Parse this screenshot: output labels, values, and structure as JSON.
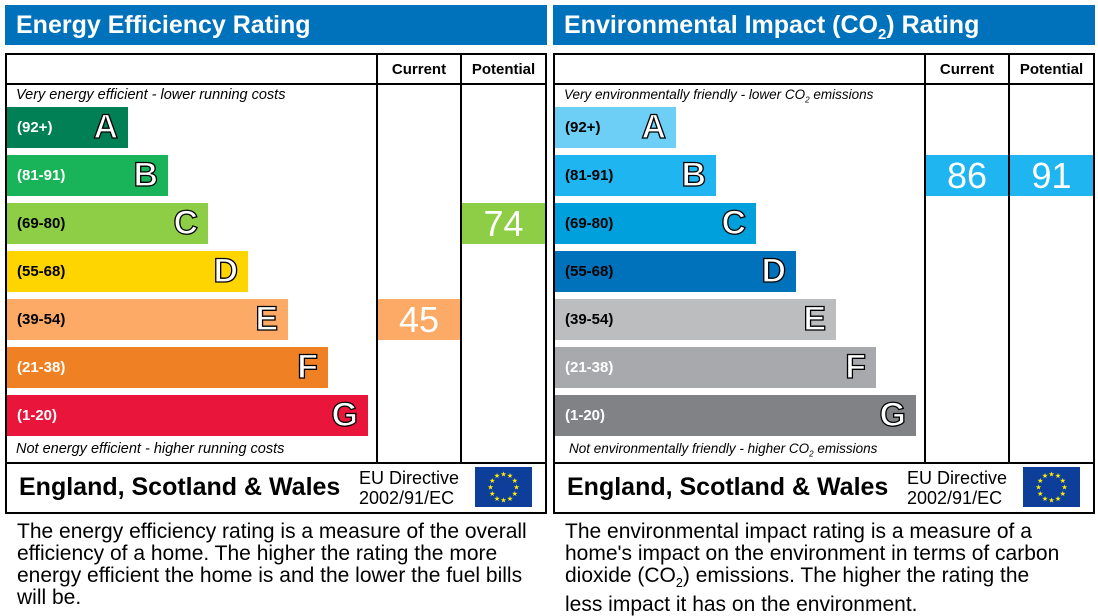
{
  "chart_data": [
    {
      "type": "bar",
      "title": "Energy Efficiency Rating",
      "columns": [
        "Current",
        "Potential"
      ],
      "top_note": "Very energy efficient - lower running costs",
      "bottom_note": "Not energy efficient - higher running costs",
      "bands": [
        {
          "letter": "A",
          "range": "(92+)",
          "color": "#008054",
          "text_color": "#ffffff"
        },
        {
          "letter": "B",
          "range": "(81-91)",
          "color": "#19b459",
          "text_color": "#ffffff"
        },
        {
          "letter": "C",
          "range": "(69-80)",
          "color": "#8dce46",
          "text_color": "#000000"
        },
        {
          "letter": "D",
          "range": "(55-68)",
          "color": "#ffd500",
          "text_color": "#000000"
        },
        {
          "letter": "E",
          "range": "(39-54)",
          "color": "#fcaa65",
          "text_color": "#000000"
        },
        {
          "letter": "F",
          "range": "(21-38)",
          "color": "#ef8023",
          "text_color": "#ffffff"
        },
        {
          "letter": "G",
          "range": "(1-20)",
          "color": "#e9153b",
          "text_color": "#ffffff"
        }
      ],
      "current": {
        "value": "45",
        "band": "E",
        "color": "#fcaa65"
      },
      "potential": {
        "value": "74",
        "band": "C",
        "color": "#8dce46"
      },
      "country": "England, Scotland & Wales",
      "directive": [
        "EU Directive",
        "2002/91/EC"
      ],
      "description": "The energy efficiency rating is a measure of the overall efficiency of a home. The higher the rating the more energy efficient the home is and the lower the fuel bills will be."
    },
    {
      "type": "bar",
      "title": "Environmental Impact (CO2) Rating",
      "columns": [
        "Current",
        "Potential"
      ],
      "top_note": "Very environmentally friendly - lower CO2 emissions",
      "bottom_note": "Not environmentally friendly - higher CO2 emissions",
      "bands": [
        {
          "letter": "A",
          "range": "(92+)",
          "color": "#6dcff6",
          "text_color": "#000000"
        },
        {
          "letter": "B",
          "range": "(81-91)",
          "color": "#1fb5f0",
          "text_color": "#000000"
        },
        {
          "letter": "C",
          "range": "(69-80)",
          "color": "#00a0dc",
          "text_color": "#000000"
        },
        {
          "letter": "D",
          "range": "(55-68)",
          "color": "#0072bc",
          "text_color": "#000000"
        },
        {
          "letter": "E",
          "range": "(39-54)",
          "color": "#bbbdbf",
          "text_color": "#000000"
        },
        {
          "letter": "F",
          "range": "(21-38)",
          "color": "#a7a9ac",
          "text_color": "#ffffff"
        },
        {
          "letter": "G",
          "range": "(1-20)",
          "color": "#808285",
          "text_color": "#ffffff"
        }
      ],
      "current": {
        "value": "86",
        "band": "B",
        "color": "#1fb5f0"
      },
      "potential": {
        "value": "91",
        "band": "B",
        "color": "#1fb5f0"
      },
      "country": "England, Scotland & Wales",
      "directive": [
        "EU Directive",
        "2002/91/EC"
      ],
      "description": "The environmental impact rating is a measure of a home's impact on the environment in terms of carbon dioxide (CO2) emissions. The higher the rating the less impact it has on the environment."
    }
  ]
}
